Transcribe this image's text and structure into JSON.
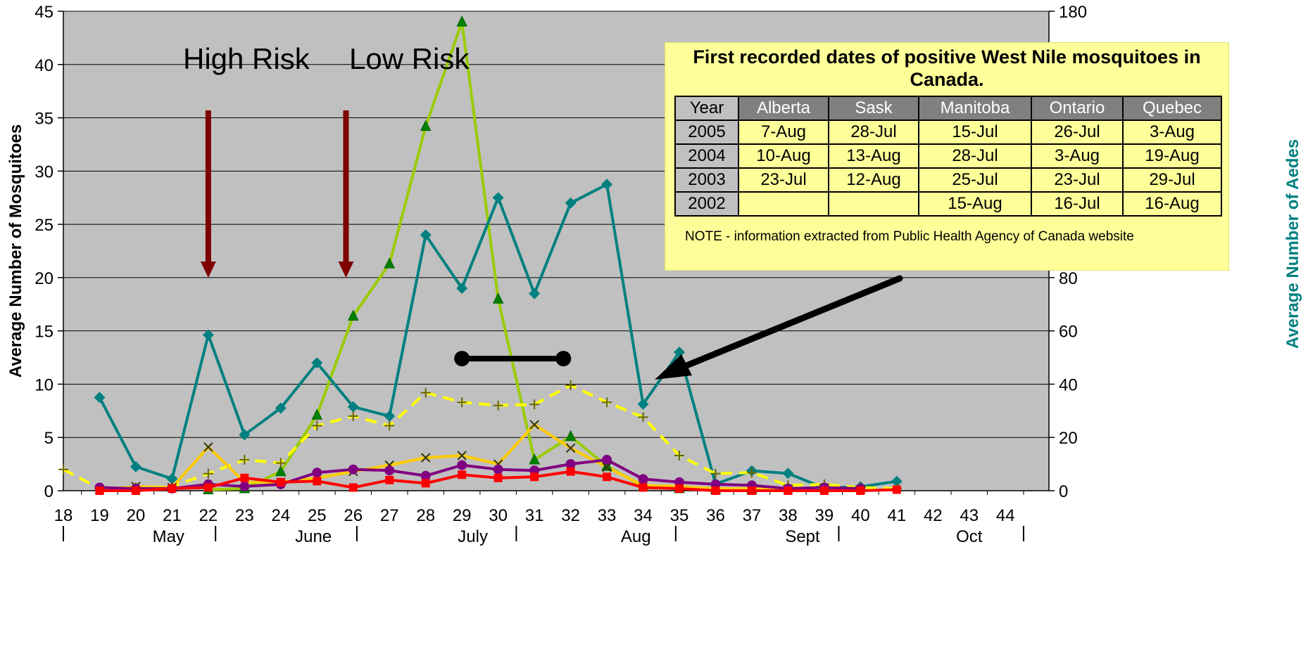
{
  "chart_data": {
    "type": "line",
    "x": [
      18,
      19,
      20,
      21,
      22,
      23,
      24,
      25,
      26,
      27,
      28,
      29,
      30,
      31,
      32,
      33,
      34,
      35,
      36,
      37,
      38,
      39,
      40,
      41,
      42,
      43,
      44
    ],
    "x_tick_labels": [
      "18",
      "19",
      "20",
      "21",
      "22",
      "23",
      "24",
      "25",
      "26",
      "27",
      "28",
      "29",
      "30",
      "31",
      "32",
      "33",
      "34",
      "35",
      "36",
      "37",
      "38",
      "39",
      "40",
      "41",
      "42",
      "43",
      "44"
    ],
    "month_labels": [
      {
        "label": "May",
        "center": 20.9
      },
      {
        "label": "June",
        "center": 24.9
      },
      {
        "label": "July",
        "center": 29.3
      },
      {
        "label": "Aug",
        "center": 33.8
      },
      {
        "label": "Sept",
        "center": 38.4
      },
      {
        "label": "Oct",
        "center": 43.0
      }
    ],
    "month_dividers": [
      18.0,
      22.2,
      26.1,
      30.5,
      34.9,
      39.4,
      44.5
    ],
    "ylabel_left": "Average Number of Mosquitoes",
    "ylabel_right": "Average Number of Aedes",
    "ylim_left": [
      0,
      45
    ],
    "ylim_right": [
      0,
      180
    ],
    "yticks_left": [
      0,
      5,
      10,
      15,
      20,
      25,
      30,
      35,
      40,
      45
    ],
    "yticks_right": [
      0,
      20,
      40,
      60,
      80,
      100,
      120,
      140,
      160,
      180
    ],
    "grid": true,
    "series": [
      {
        "color": "#99cc00",
        "marker": "triangle",
        "axis": "left",
        "dashed": false,
        "points": [
          [
            22,
            0.1
          ],
          [
            23,
            0.2
          ],
          [
            24,
            1.8
          ],
          [
            25,
            7.1
          ],
          [
            26,
            16.4
          ],
          [
            27,
            21.3
          ],
          [
            28,
            34.2
          ],
          [
            29,
            44.0
          ],
          [
            30,
            18.0
          ],
          [
            31,
            2.9
          ],
          [
            32,
            5.1
          ],
          [
            33,
            2.3
          ],
          [
            34,
            0.4
          ],
          [
            35,
            0.2
          ],
          [
            36,
            0.1
          ],
          [
            37,
            0.1
          ]
        ]
      },
      {
        "color": "#008080",
        "marker": "diamond",
        "axis": "right",
        "dashed": false,
        "points": [
          [
            19,
            35
          ],
          [
            20,
            9
          ],
          [
            21,
            4.5
          ],
          [
            22,
            58.5
          ],
          [
            23,
            21
          ],
          [
            24,
            31
          ],
          [
            25,
            48
          ],
          [
            26,
            31.5
          ],
          [
            27,
            28
          ],
          [
            28,
            96
          ],
          [
            29,
            76
          ],
          [
            30,
            110
          ],
          [
            31,
            74
          ],
          [
            32,
            108
          ],
          [
            33,
            115
          ],
          [
            34,
            32.5
          ],
          [
            35,
            52
          ],
          [
            36,
            2.5
          ],
          [
            37,
            7.5
          ],
          [
            38,
            6.5
          ],
          [
            39,
            1
          ],
          [
            40,
            1.5
          ],
          [
            41,
            3.5
          ]
        ]
      },
      {
        "color": "#ffff00",
        "marker": "plus",
        "axis": "left",
        "dashed": true,
        "points": [
          [
            18,
            2.0
          ],
          [
            19,
            0.2
          ],
          [
            20,
            0.3
          ],
          [
            21,
            0.4
          ],
          [
            22,
            1.6
          ],
          [
            23,
            2.9
          ],
          [
            24,
            2.6
          ],
          [
            25,
            6.1
          ],
          [
            26,
            7.0
          ],
          [
            27,
            6.1
          ],
          [
            28,
            9.2
          ],
          [
            29,
            8.3
          ],
          [
            30,
            8.0
          ],
          [
            31,
            8.1
          ],
          [
            32,
            9.9
          ],
          [
            33,
            8.3
          ],
          [
            34,
            6.9
          ],
          [
            35,
            3.3
          ],
          [
            36,
            1.6
          ],
          [
            37,
            1.7
          ],
          [
            38,
            0.5
          ],
          [
            39,
            0.6
          ],
          [
            40,
            0.3
          ],
          [
            41,
            0.2
          ]
        ]
      },
      {
        "color": "#ffcc00",
        "marker": "x",
        "axis": "left",
        "dashed": false,
        "points": [
          [
            19,
            0.1
          ],
          [
            20,
            0.4
          ],
          [
            21,
            0.3
          ],
          [
            22,
            4.1
          ],
          [
            23,
            0.8
          ],
          [
            24,
            0.8
          ],
          [
            25,
            1.2
          ],
          [
            26,
            1.8
          ],
          [
            27,
            2.4
          ],
          [
            28,
            3.1
          ],
          [
            29,
            3.3
          ],
          [
            30,
            2.5
          ],
          [
            31,
            6.2
          ],
          [
            32,
            4.0
          ],
          [
            33,
            2.2
          ],
          [
            34,
            0.5
          ],
          [
            35,
            0.4
          ],
          [
            36,
            0.2
          ],
          [
            37,
            0.2
          ],
          [
            38,
            0.1
          ],
          [
            39,
            0.2
          ],
          [
            40,
            0.1
          ]
        ]
      },
      {
        "color": "#800080",
        "marker": "circle",
        "axis": "left",
        "dashed": false,
        "points": [
          [
            19,
            0.3
          ],
          [
            20,
            0.2
          ],
          [
            21,
            0.2
          ],
          [
            22,
            0.6
          ],
          [
            23,
            0.4
          ],
          [
            24,
            0.6
          ],
          [
            25,
            1.7
          ],
          [
            26,
            2.0
          ],
          [
            27,
            1.9
          ],
          [
            28,
            1.4
          ],
          [
            29,
            2.4
          ],
          [
            30,
            2.0
          ],
          [
            31,
            1.9
          ],
          [
            32,
            2.5
          ],
          [
            33,
            2.9
          ],
          [
            34,
            1.1
          ],
          [
            35,
            0.8
          ],
          [
            36,
            0.6
          ],
          [
            37,
            0.5
          ],
          [
            38,
            0.2
          ],
          [
            39,
            0.3
          ],
          [
            40,
            0.2
          ]
        ]
      },
      {
        "color": "#ff0000",
        "marker": "square",
        "axis": "left",
        "dashed": false,
        "points": [
          [
            19,
            0.0
          ],
          [
            20,
            0.0
          ],
          [
            21,
            0.2
          ],
          [
            22,
            0.3
          ],
          [
            23,
            1.2
          ],
          [
            24,
            0.8
          ],
          [
            25,
            0.9
          ],
          [
            26,
            0.3
          ],
          [
            27,
            1.0
          ],
          [
            28,
            0.7
          ],
          [
            29,
            1.5
          ],
          [
            30,
            1.2
          ],
          [
            31,
            1.3
          ],
          [
            32,
            1.8
          ],
          [
            33,
            1.3
          ],
          [
            34,
            0.3
          ],
          [
            35,
            0.2
          ],
          [
            36,
            0.0
          ],
          [
            37,
            0.0
          ],
          [
            38,
            0.0
          ],
          [
            39,
            0.0
          ],
          [
            40,
            0.0
          ],
          [
            41,
            0.1
          ]
        ]
      }
    ],
    "annotations": {
      "high_risk": "High Risk",
      "low_risk": "Low Risk",
      "high_risk_arrow_x": 22.0,
      "low_risk_arrow_x": 25.8
    },
    "bar_annotation": {
      "x_start": 29.0,
      "x_end": 31.8,
      "y": 12.4
    }
  },
  "info_box": {
    "title": "First recorded dates of positive West Nile mosquitoes in Canada.",
    "headers": [
      "Year",
      "Alberta",
      "Sask",
      "Manitoba",
      "Ontario",
      "Quebec"
    ],
    "rows": [
      [
        "2005",
        "7-Aug",
        "28-Jul",
        "15-Jul",
        "26-Jul",
        "3-Aug"
      ],
      [
        "2004",
        "10-Aug",
        "13-Aug",
        "28-Jul",
        "3-Aug",
        "19-Aug"
      ],
      [
        "2003",
        "23-Jul",
        "12-Aug",
        "25-Jul",
        "23-Jul",
        "29-Jul"
      ],
      [
        "2002",
        "",
        "",
        "15-Aug",
        "16-Jul",
        "16-Aug"
      ]
    ],
    "note": "NOTE - information extracted from Public Health Agency of Canada website"
  }
}
